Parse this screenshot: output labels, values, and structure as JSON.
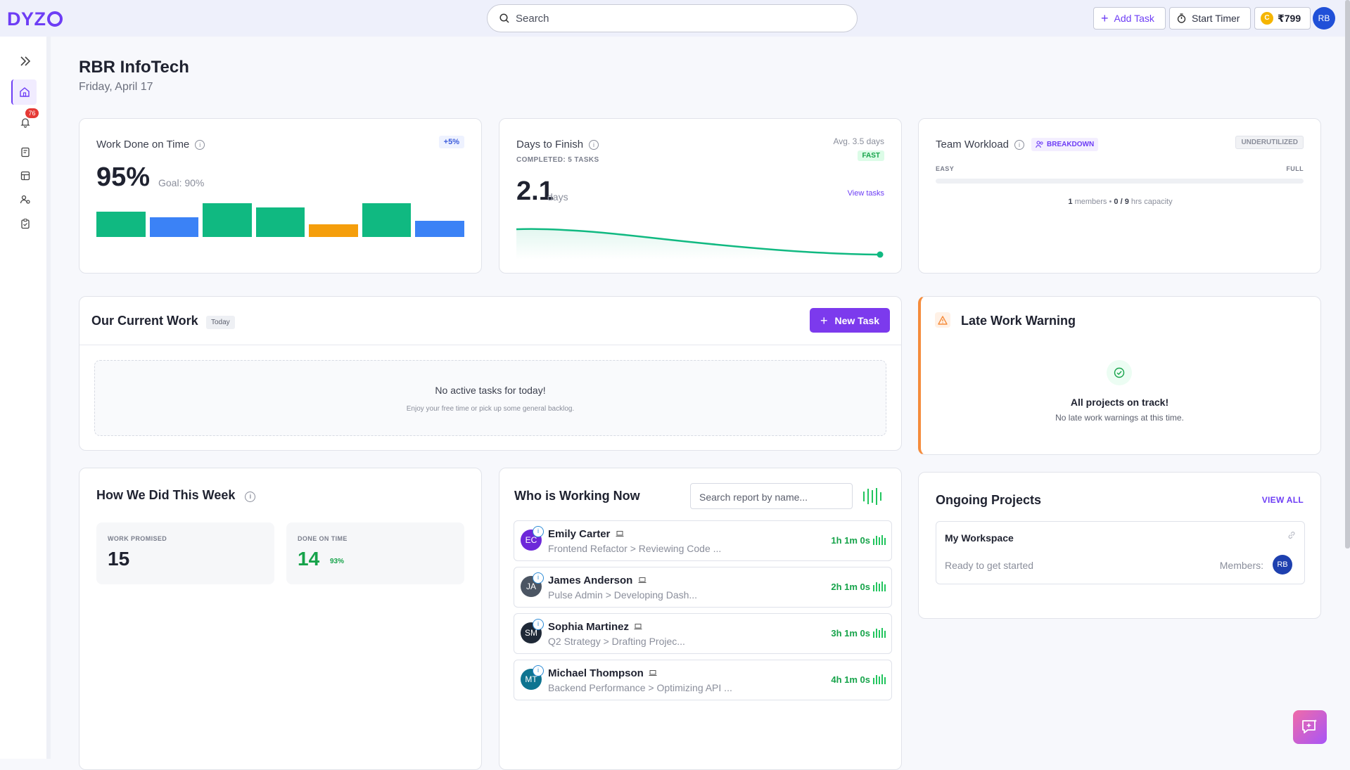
{
  "app": {
    "logo": "DYZ",
    "logo_tail": "O"
  },
  "search": {
    "placeholder": "Search"
  },
  "topbar": {
    "add_task": "Add Task",
    "start_timer": "Start Timer",
    "coins": "₹799",
    "coin_icon_letter": "C",
    "user_initials": "RB"
  },
  "sidebar": {
    "notifications_badge": "76"
  },
  "page": {
    "title": "RBR InfoTech",
    "date": "Friday, April 17"
  },
  "work_done": {
    "title": "Work Done on Time",
    "change": "+5%",
    "value": "95%",
    "goal": "Goal: 90%",
    "bars": [
      {
        "level": 0.75,
        "color": "#10b981"
      },
      {
        "level": 0.58,
        "color": "#3b82f6"
      },
      {
        "level": 1.0,
        "color": "#10b981"
      },
      {
        "level": 0.87,
        "color": "#10b981"
      },
      {
        "level": 0.37,
        "color": "#f59e0b"
      },
      {
        "level": 1.0,
        "color": "#10b981"
      },
      {
        "level": 0.48,
        "color": "#3b82f6"
      }
    ]
  },
  "days_to_finish": {
    "title": "Days to Finish",
    "completed": "COMPLETED: 5 TASKS",
    "avg": "Avg. 3.5 days",
    "speed": "FAST",
    "value": "2.1",
    "unit": "days",
    "view_tasks": "View tasks"
  },
  "team_workload": {
    "title": "Team Workload",
    "breakdown": "BREAKDOWN",
    "status": "UNDERUTILIZED",
    "easy": "EASY",
    "full": "FULL",
    "members": "1",
    "members_label": "members",
    "capacity": "0 / 9",
    "capacity_label": "hrs capacity"
  },
  "current_work": {
    "title": "Our Current Work",
    "tag": "Today",
    "new_task": "New Task",
    "empty_title": "No active tasks for today!",
    "empty_sub": "Enjoy your free time or pick up some general backlog."
  },
  "late_warning": {
    "title": "Late Work Warning",
    "ok_title": "All projects on track!",
    "ok_sub": "No late work warnings at this time."
  },
  "week": {
    "title": "How We Did This Week",
    "promised_label": "WORK PROMISED",
    "promised": "15",
    "ontime_label": "DONE ON TIME",
    "ontime": "14",
    "ontime_pct": "93%"
  },
  "working_now": {
    "title": "Who is Working Now",
    "search_placeholder": "Search report by name...",
    "rows": [
      {
        "initials": "EC",
        "color": "#6d28d9",
        "name": "Emily Carter",
        "task": "Frontend Refactor > Reviewing Code ...",
        "time": "1h 1m 0s"
      },
      {
        "initials": "JA",
        "color": "#4b5563",
        "name": "James Anderson",
        "task": "Pulse Admin > Developing Dash...",
        "time": "2h 1m 0s"
      },
      {
        "initials": "SM",
        "color": "#1f2937",
        "name": "Sophia Martinez",
        "task": "Q2 Strategy > Drafting Projec...",
        "time": "3h 1m 0s"
      },
      {
        "initials": "MT",
        "color": "#0e7490",
        "name": "Michael Thompson",
        "task": "Backend Performance > Optimizing API ...",
        "time": "4h 1m 0s"
      }
    ]
  },
  "projects": {
    "title": "Ongoing Projects",
    "view_all": "VIEW ALL",
    "name": "My Workspace",
    "status": "Ready to get started",
    "members_label": "Members:",
    "member_initials": "RB"
  }
}
